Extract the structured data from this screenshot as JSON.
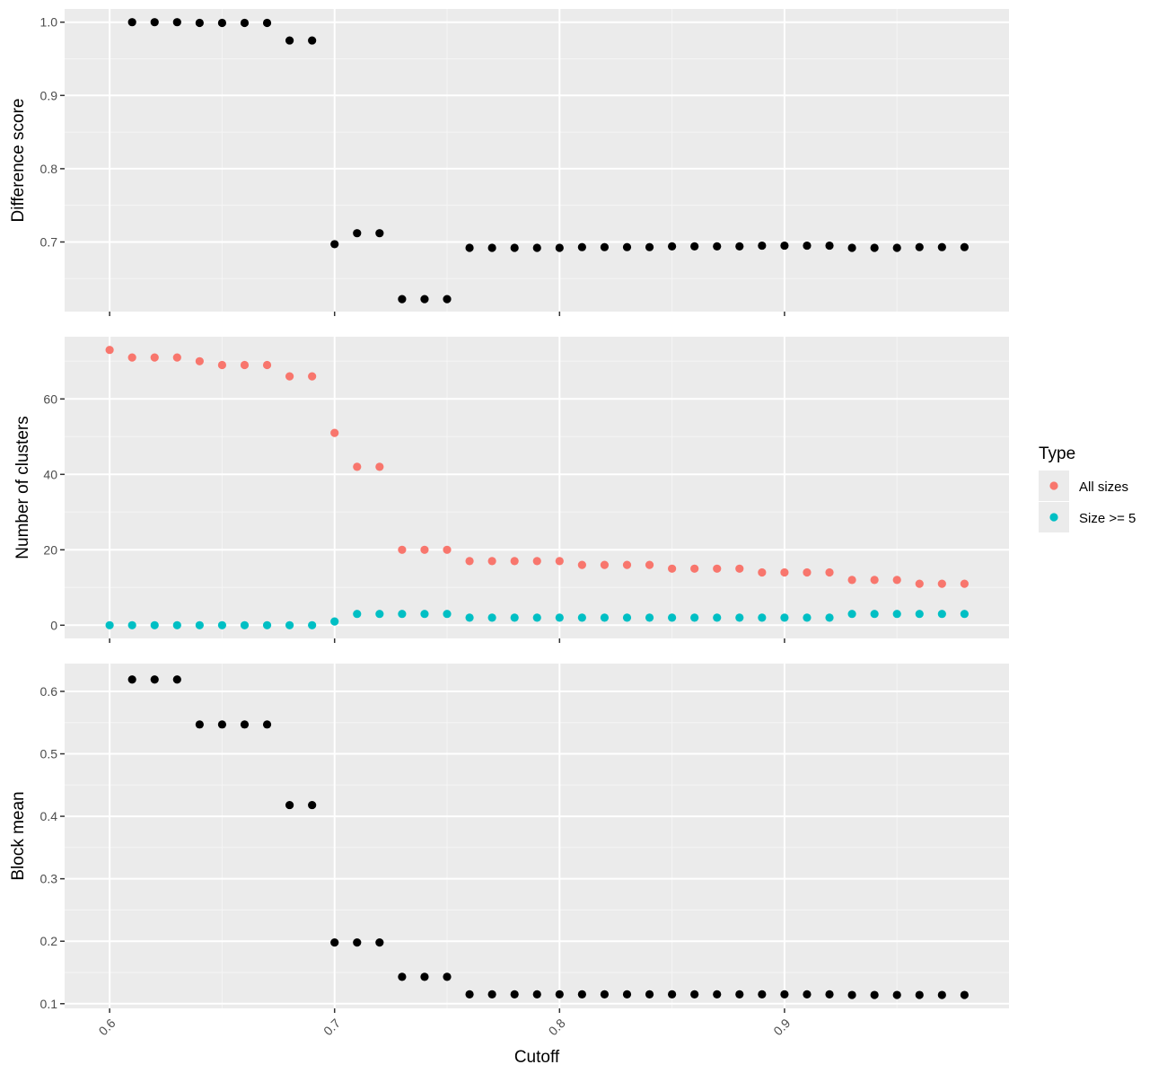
{
  "chart_data": [
    {
      "type": "scatter",
      "ylabel": "Difference score",
      "ylim": [
        0.605,
        1.018
      ],
      "yticks": [
        0.7,
        0.8,
        0.9,
        1.0
      ],
      "ytick_labels": [
        "0.7",
        "0.8",
        "0.9",
        "1.0"
      ],
      "grid": true,
      "series": [
        {
          "color": "#000000",
          "x": [
            0.61,
            0.62,
            0.63,
            0.64,
            0.65,
            0.66,
            0.67,
            0.68,
            0.69,
            0.7,
            0.71,
            0.72,
            0.73,
            0.74,
            0.75,
            0.76,
            0.77,
            0.78,
            0.79,
            0.8,
            0.81,
            0.82,
            0.83,
            0.84,
            0.85,
            0.86,
            0.87,
            0.88,
            0.89,
            0.9,
            0.91,
            0.92,
            0.93,
            0.94,
            0.95,
            0.96,
            0.97,
            0.98
          ],
          "y": [
            1.0,
            1.0,
            1.0,
            0.999,
            0.999,
            0.999,
            0.999,
            0.975,
            0.975,
            0.697,
            0.712,
            0.712,
            0.622,
            0.622,
            0.622,
            0.692,
            0.692,
            0.692,
            0.692,
            0.692,
            0.693,
            0.693,
            0.693,
            0.693,
            0.694,
            0.694,
            0.694,
            0.694,
            0.695,
            0.695,
            0.695,
            0.695,
            0.692,
            0.692,
            0.692,
            0.693,
            0.693,
            0.693
          ]
        }
      ]
    },
    {
      "type": "scatter",
      "ylabel": "Number of clusters",
      "ylim": [
        -3.5,
        76.5
      ],
      "yticks": [
        0,
        20,
        40,
        60
      ],
      "ytick_labels": [
        "0",
        "20",
        "40",
        "60"
      ],
      "grid": true,
      "legend": {
        "title": "Type",
        "placement": "right"
      },
      "series": [
        {
          "name": "All sizes",
          "color": "#F8766D",
          "x": [
            0.6,
            0.61,
            0.62,
            0.63,
            0.64,
            0.65,
            0.66,
            0.67,
            0.68,
            0.69,
            0.7,
            0.71,
            0.72,
            0.73,
            0.74,
            0.75,
            0.76,
            0.77,
            0.78,
            0.79,
            0.8,
            0.81,
            0.82,
            0.83,
            0.84,
            0.85,
            0.86,
            0.87,
            0.88,
            0.89,
            0.9,
            0.91,
            0.92,
            0.93,
            0.94,
            0.95,
            0.96,
            0.97,
            0.98
          ],
          "y": [
            73,
            71,
            71,
            71,
            70,
            69,
            69,
            69,
            66,
            66,
            51,
            42,
            42,
            20,
            20,
            20,
            17,
            17,
            17,
            17,
            17,
            16,
            16,
            16,
            16,
            15,
            15,
            15,
            15,
            14,
            14,
            14,
            14,
            12,
            12,
            12,
            11,
            11,
            11
          ]
        },
        {
          "name": "Size >= 5",
          "color": "#00BFC4",
          "x": [
            0.6,
            0.61,
            0.62,
            0.63,
            0.64,
            0.65,
            0.66,
            0.67,
            0.68,
            0.69,
            0.7,
            0.71,
            0.72,
            0.73,
            0.74,
            0.75,
            0.76,
            0.77,
            0.78,
            0.79,
            0.8,
            0.81,
            0.82,
            0.83,
            0.84,
            0.85,
            0.86,
            0.87,
            0.88,
            0.89,
            0.9,
            0.91,
            0.92,
            0.93,
            0.94,
            0.95,
            0.96,
            0.97,
            0.98
          ],
          "y": [
            0,
            0,
            0,
            0,
            0,
            0,
            0,
            0,
            0,
            0,
            1,
            3,
            3,
            3,
            3,
            3,
            2,
            2,
            2,
            2,
            2,
            2,
            2,
            2,
            2,
            2,
            2,
            2,
            2,
            2,
            2,
            2,
            2,
            3,
            3,
            3,
            3,
            3,
            3
          ]
        }
      ]
    },
    {
      "type": "scatter",
      "ylabel": "Block mean",
      "xlabel": "Cutoff",
      "ylim": [
        0.0925,
        0.6445
      ],
      "yticks": [
        0.1,
        0.2,
        0.3,
        0.4,
        0.5,
        0.6
      ],
      "ytick_labels": [
        "0.1",
        "0.2",
        "0.3",
        "0.4",
        "0.5",
        "0.6"
      ],
      "grid": true,
      "series": [
        {
          "color": "#000000",
          "x": [
            0.61,
            0.62,
            0.63,
            0.64,
            0.65,
            0.66,
            0.67,
            0.68,
            0.69,
            0.7,
            0.71,
            0.72,
            0.73,
            0.74,
            0.75,
            0.76,
            0.77,
            0.78,
            0.79,
            0.8,
            0.81,
            0.82,
            0.83,
            0.84,
            0.85,
            0.86,
            0.87,
            0.88,
            0.89,
            0.9,
            0.91,
            0.92,
            0.93,
            0.94,
            0.95,
            0.96,
            0.97,
            0.98
          ],
          "y": [
            0.619,
            0.619,
            0.619,
            0.547,
            0.547,
            0.547,
            0.547,
            0.418,
            0.418,
            0.198,
            0.198,
            0.198,
            0.143,
            0.143,
            0.143,
            0.115,
            0.115,
            0.115,
            0.115,
            0.115,
            0.115,
            0.115,
            0.115,
            0.115,
            0.115,
            0.115,
            0.115,
            0.115,
            0.115,
            0.115,
            0.115,
            0.115,
            0.114,
            0.114,
            0.114,
            0.114,
            0.114,
            0.114
          ]
        }
      ]
    }
  ],
  "x_axis": {
    "title": "Cutoff",
    "range": [
      0.58,
      0.9998
    ],
    "ticks": [
      0.6,
      0.7,
      0.8,
      0.9
    ],
    "tick_labels": [
      "0.6",
      "0.7",
      "0.8",
      "0.9"
    ]
  },
  "colors": {
    "panel_background": "#EBEBEB",
    "grid_major": "#FFFFFF",
    "all_sizes": "#F8766D",
    "size_ge_5": "#00BFC4"
  }
}
